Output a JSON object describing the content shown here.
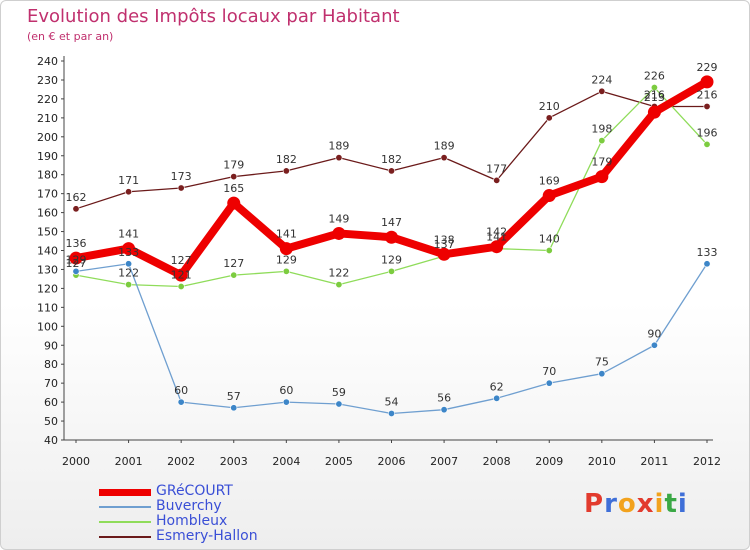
{
  "title": "Evolution des Impôts locaux par Habitant",
  "subtitle": "(en € et par an)",
  "logo": {
    "text": "Proxiti",
    "letters": [
      "P",
      "r",
      "o",
      "x",
      "i",
      "t",
      "i"
    ],
    "colors": [
      "#e23b2e",
      "#3f6fd8",
      "#f2a21d",
      "#e23b2e",
      "#f2a21d",
      "#3aa845",
      "#3f6fd8"
    ]
  },
  "chart_data": {
    "type": "line",
    "title": "Evolution des Impôts locaux par Habitant",
    "ylabel": "(en € et par an)",
    "xlabel": "",
    "ylim": [
      40,
      240
    ],
    "ytick_step": 10,
    "grid": false,
    "legend_position": "bottom-left",
    "x": [
      2000,
      2001,
      2002,
      2003,
      2004,
      2005,
      2006,
      2007,
      2008,
      2009,
      2010,
      2011,
      2012
    ],
    "series": [
      {
        "name": "Esmery-Hallon",
        "color": "#6b1a1a",
        "marker": "#7a1f1f",
        "emphasis": false,
        "values": [
          162,
          171,
          173,
          179,
          182,
          189,
          182,
          189,
          177,
          210,
          224,
          216,
          216
        ],
        "labels": [
          "162",
          "171",
          "173",
          "179",
          "182",
          "189",
          "182",
          "189",
          "177",
          "210",
          "224",
          "216",
          "216"
        ]
      },
      {
        "name": "Hombleux",
        "color": "#8fdc5a",
        "marker": "#7ccc3f",
        "emphasis": false,
        "values": [
          127,
          122,
          121,
          127,
          129,
          122,
          129,
          137,
          141,
          140,
          198,
          226,
          196
        ],
        "labels": [
          "127",
          "122",
          "121",
          "127",
          "129",
          "122",
          "129",
          "137",
          "141",
          "140",
          "198",
          "226",
          "196"
        ]
      },
      {
        "name": "Buverchy",
        "color": "#6f9fd0",
        "marker": "#3d86c8",
        "emphasis": false,
        "values": [
          129,
          133,
          60,
          57,
          60,
          59,
          54,
          56,
          62,
          70,
          75,
          90,
          133
        ],
        "labels": [
          "129",
          "133",
          "60",
          "57",
          "60",
          "59",
          "54",
          "56",
          "62",
          "70",
          "75",
          "90",
          "133"
        ]
      },
      {
        "name": "GRéCOURT",
        "color": "#ee0000",
        "marker": "#ee0000",
        "emphasis": true,
        "values": [
          136,
          141,
          127,
          165,
          141,
          149,
          147,
          138,
          142,
          169,
          179,
          213,
          229
        ],
        "labels": [
          "136",
          "141",
          "127",
          "165",
          "141",
          "149",
          "147",
          "138",
          "142",
          "169",
          "179",
          "213",
          "229"
        ]
      }
    ],
    "legend": [
      {
        "name": "GRéCOURT",
        "color": "#ee0000",
        "thickness": "thick"
      },
      {
        "name": "Buverchy",
        "color": "#6f9fd0",
        "thickness": "thin"
      },
      {
        "name": "Hombleux",
        "color": "#8fdc5a",
        "thickness": "thin"
      },
      {
        "name": "Esmery-Hallon",
        "color": "#6b1a1a",
        "thickness": "thin"
      }
    ]
  }
}
